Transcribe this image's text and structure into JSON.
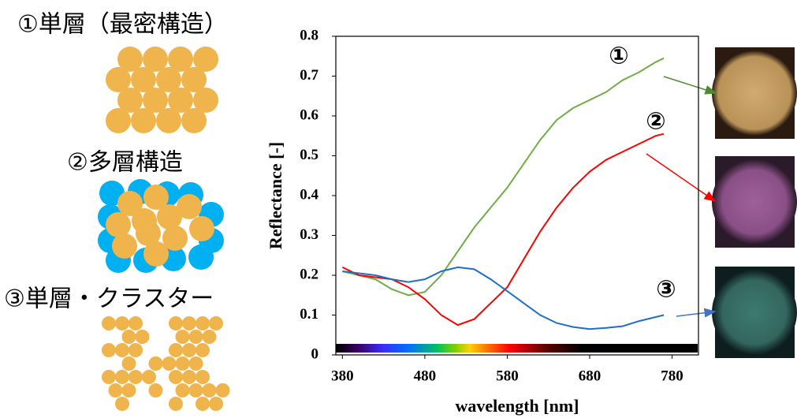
{
  "panels": [
    "①単層（最密構造）",
    "②多層構造",
    "③単層・クラスター"
  ],
  "chart_data": {
    "type": "line",
    "x_label": "wavelength [nm]",
    "y_label": "Reflectance [-]",
    "x": [
      380,
      400,
      420,
      440,
      460,
      480,
      500,
      520,
      540,
      560,
      580,
      600,
      620,
      640,
      660,
      680,
      700,
      720,
      740,
      760,
      770
    ],
    "series": [
      {
        "name": "①",
        "color": "#70ad47",
        "values": [
          0.21,
          0.2,
          0.19,
          0.165,
          0.15,
          0.158,
          0.2,
          0.26,
          0.32,
          0.37,
          0.42,
          0.48,
          0.54,
          0.59,
          0.62,
          0.64,
          0.66,
          0.69,
          0.71,
          0.735,
          0.745
        ]
      },
      {
        "name": "②",
        "color": "#ff0000",
        "values": [
          0.22,
          0.2,
          0.195,
          0.19,
          0.17,
          0.14,
          0.1,
          0.075,
          0.09,
          0.13,
          0.17,
          0.24,
          0.31,
          0.37,
          0.42,
          0.46,
          0.49,
          0.51,
          0.53,
          0.55,
          0.555
        ]
      },
      {
        "name": "③",
        "color": "#1f6fc5",
        "values": [
          0.21,
          0.205,
          0.2,
          0.19,
          0.183,
          0.19,
          0.21,
          0.22,
          0.215,
          0.19,
          0.16,
          0.13,
          0.1,
          0.08,
          0.07,
          0.065,
          0.068,
          0.072,
          0.085,
          0.095,
          0.1
        ]
      }
    ],
    "xlim": [
      372,
      812
    ],
    "ylim": [
      0,
      0.8
    ],
    "xticks": [
      380,
      480,
      580,
      680,
      780
    ],
    "yticks": [
      0,
      0.1,
      0.2,
      0.3,
      0.4,
      0.5,
      0.6,
      0.7,
      0.8
    ]
  }
}
